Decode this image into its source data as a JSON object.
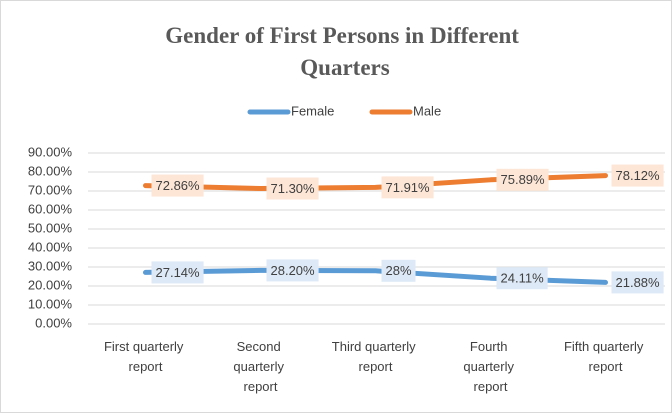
{
  "chart_data": {
    "type": "line",
    "title": "Gender of First Persons in Different Quarters",
    "categories": [
      "First quarterly report",
      "Second quarterly report",
      "Third quarterly report",
      "Fourth quarterly report",
      "Fifth quarterly report"
    ],
    "series": [
      {
        "name": "Female",
        "color": "#5b9bd5",
        "label_fill": "#dde9f6",
        "values": [
          27.14,
          28.2,
          28,
          24.11,
          21.88
        ],
        "value_labels": [
          "27.14%",
          "28.20%",
          "28%",
          "24.11%",
          "21.88%"
        ]
      },
      {
        "name": "Male",
        "color": "#ed7d31",
        "label_fill": "#fde6d6",
        "values": [
          72.86,
          71.3,
          71.91,
          75.89,
          78.12
        ],
        "value_labels": [
          "72.86%",
          "71.30%",
          "71.91%",
          "75.89%",
          "78.12%"
        ]
      }
    ],
    "ylim": [
      0,
      90
    ],
    "yticks": [
      {
        "value": 0,
        "label": "0.00%"
      },
      {
        "value": 10,
        "label": "10.00%"
      },
      {
        "value": 20,
        "label": "20.00%"
      },
      {
        "value": 30,
        "label": "30.00%"
      },
      {
        "value": 40,
        "label": "40.00%"
      },
      {
        "value": 50,
        "label": "50.00%"
      },
      {
        "value": 60,
        "label": "60.00%"
      },
      {
        "value": 70,
        "label": "70.00%"
      },
      {
        "value": 80,
        "label": "80.00%"
      },
      {
        "value": 90,
        "label": "90.00%"
      }
    ],
    "grid": true,
    "legend": "top"
  }
}
